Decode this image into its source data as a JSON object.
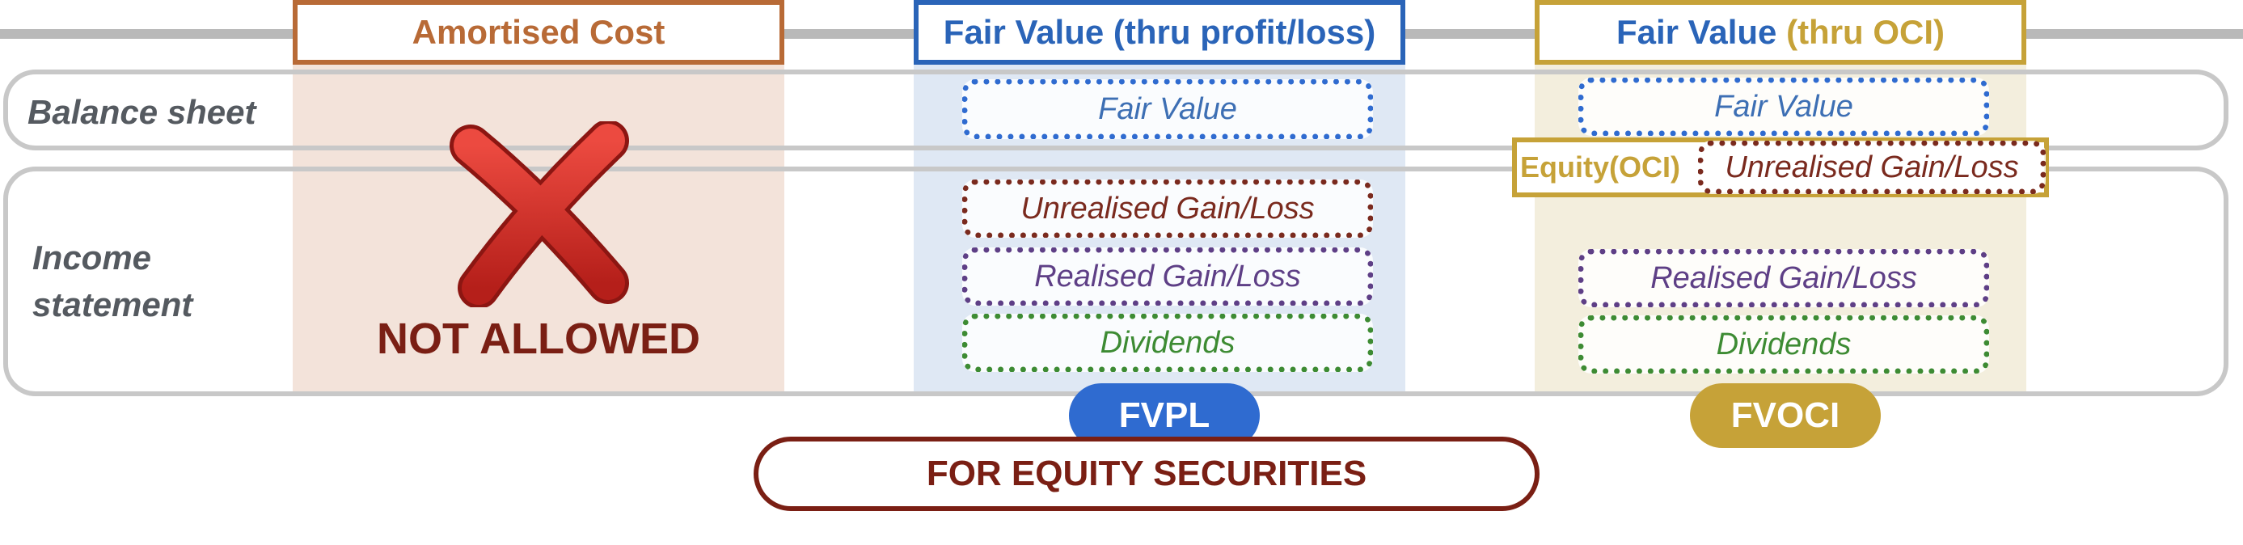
{
  "columns": {
    "amortised": {
      "title": "Amortised Cost",
      "status": "NOT ALLOWED"
    },
    "fvpl": {
      "title": "Fair Value (thru profit/loss)",
      "badge": "FVPL",
      "balance_sheet": "Fair Value",
      "income": [
        "Unrealised Gain/Loss",
        "Realised Gain/Loss",
        "Dividends"
      ]
    },
    "fvoci": {
      "title_part1": "Fair Value",
      "title_part2": "(thru OCI)",
      "badge": "FVOCI",
      "balance_sheet": "Fair Value",
      "equity_label": "Equity(OCI)",
      "equity_item": "Unrealised Gain/Loss",
      "income": [
        "Realised Gain/Loss",
        "Dividends"
      ]
    }
  },
  "rows": {
    "balance_sheet": "Balance sheet",
    "income_statement": "Income statement"
  },
  "footer": "FOR EQUITY SECURITIES",
  "colors": {
    "amortised": "#b86a36",
    "fvpl": "#2a64b8",
    "fvoci": "#c6a238",
    "not_allowed": "#7a1f14",
    "x_red": "#d8312b"
  },
  "icons": {
    "not_allowed_mark": "cross-x-icon"
  }
}
